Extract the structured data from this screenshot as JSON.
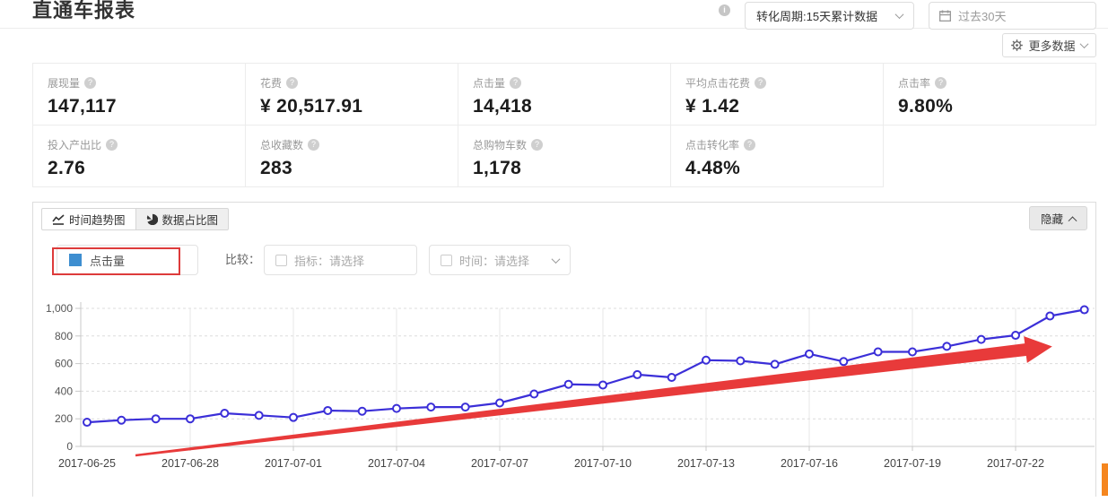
{
  "header": {
    "title": "直通车报表",
    "info_icon": "i",
    "conversion_select_value": "转化周期:15天累计数据",
    "date_range_value": "过去30天",
    "more_data_label": "更多数据"
  },
  "metrics": [
    {
      "label": "展现量",
      "value": "147,117"
    },
    {
      "label": "花费",
      "value": "¥ 20,517.91"
    },
    {
      "label": "点击量",
      "value": "14,418"
    },
    {
      "label": "平均点击花费",
      "value": "¥ 1.42"
    },
    {
      "label": "点击率",
      "value": "9.80%"
    },
    {
      "label": "投入产出比",
      "value": "2.76"
    },
    {
      "label": "总收藏数",
      "value": "283"
    },
    {
      "label": "总购物车数",
      "value": "1,178"
    },
    {
      "label": "点击转化率",
      "value": "4.48%"
    }
  ],
  "panel": {
    "tabs": [
      {
        "label": "时间趋势图"
      },
      {
        "label": "数据占比图"
      }
    ],
    "hide_label": "隐藏",
    "legend": {
      "label": "点击量",
      "color": "#3e8ed0"
    },
    "compare": {
      "label": "比较：",
      "metric_placeholder": "指标：请选择",
      "time_placeholder": "时间：请选择"
    }
  },
  "chart_data": {
    "type": "line",
    "title": "",
    "xlabel": "",
    "ylabel": "",
    "grid": true,
    "ylim": [
      0,
      1000
    ],
    "y_ticks": [
      0,
      200,
      400,
      600,
      800,
      1000
    ],
    "y_tick_labels": [
      "0",
      "200",
      "400",
      "600",
      "800",
      "1,000"
    ],
    "x": [
      "2017-06-25",
      "2017-06-26",
      "2017-06-27",
      "2017-06-28",
      "2017-06-29",
      "2017-06-30",
      "2017-07-01",
      "2017-07-02",
      "2017-07-03",
      "2017-07-04",
      "2017-07-05",
      "2017-07-06",
      "2017-07-07",
      "2017-07-08",
      "2017-07-09",
      "2017-07-10",
      "2017-07-11",
      "2017-07-12",
      "2017-07-13",
      "2017-07-14",
      "2017-07-15",
      "2017-07-16",
      "2017-07-17",
      "2017-07-18",
      "2017-07-19",
      "2017-07-20",
      "2017-07-21",
      "2017-07-22",
      "2017-07-23",
      "2017-07-24"
    ],
    "x_tick_labels": [
      "2017-06-25",
      "2017-06-28",
      "2017-07-01",
      "2017-07-04",
      "2017-07-07",
      "2017-07-10",
      "2017-07-13",
      "2017-07-16",
      "2017-07-19",
      "2017-07-22"
    ],
    "x_tick_interval": 3,
    "series": [
      {
        "name": "点击量",
        "color": "#3b2fd8",
        "values": [
          175,
          190,
          200,
          200,
          240,
          225,
          210,
          260,
          255,
          275,
          285,
          285,
          315,
          380,
          450,
          445,
          520,
          500,
          625,
          620,
          595,
          670,
          615,
          685,
          685,
          725,
          775,
          805,
          945,
          990
        ]
      }
    ],
    "annotation": {
      "type": "trend-arrow",
      "color": "#e83a3a",
      "description": "red upward trend arrow drawn across the chart"
    }
  }
}
